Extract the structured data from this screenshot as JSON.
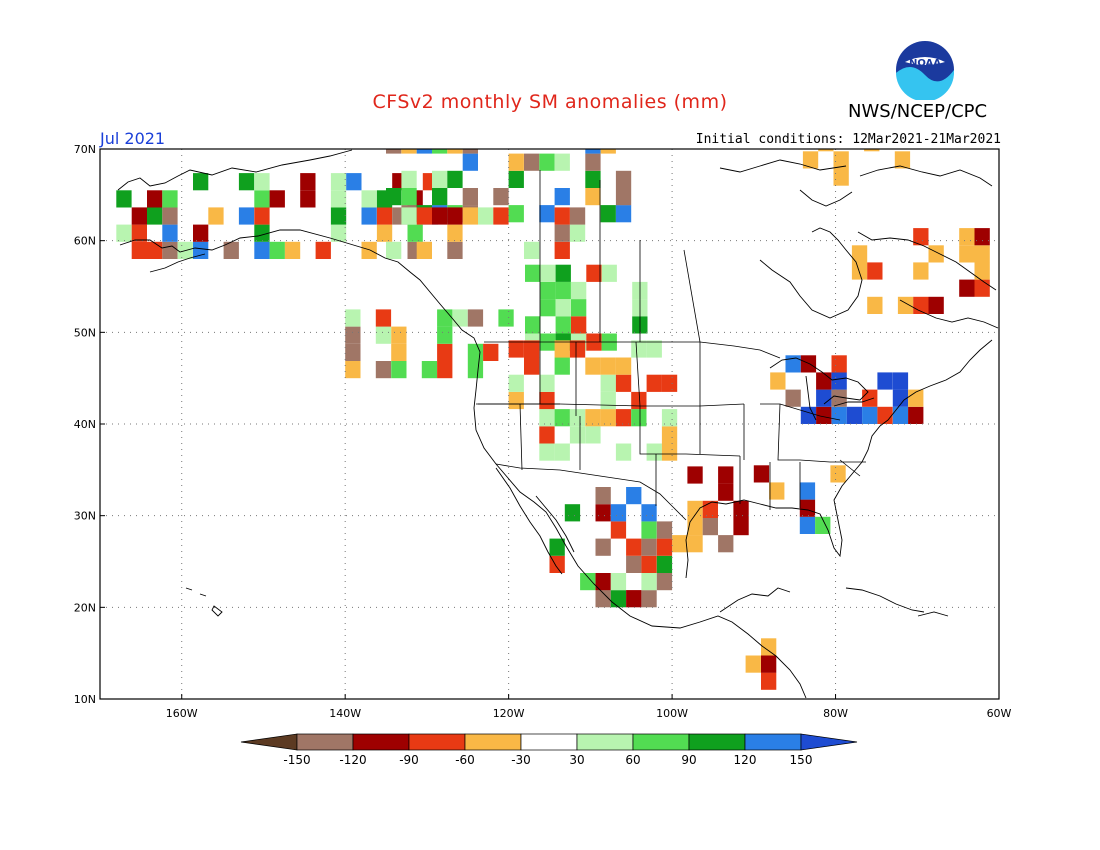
{
  "title": "CFSv2 monthly SM anomalies (mm)",
  "agency": "NWS/NCEP/CPC",
  "logo_text": "NOAA",
  "forecast_month": "Jul 2021",
  "initial_conditions": "Initial conditions: 12Mar2021-21Mar2021",
  "map": {
    "lon_range": [
      -170,
      -60
    ],
    "lat_range": [
      10,
      70
    ],
    "lat_labels": [
      "10N",
      "20N",
      "30N",
      "40N",
      "50N",
      "60N",
      "70N"
    ],
    "lon_labels": [
      "160W",
      "140W",
      "120W",
      "100W",
      "80W",
      "60W"
    ],
    "grid": "dotted"
  },
  "colorbar": {
    "tick_labels": [
      "-150",
      "-120",
      "-90",
      "-60",
      "-30",
      "30",
      "60",
      "90",
      "120",
      "150"
    ],
    "colors": [
      "#5c3a22",
      "#a07666",
      "#9e0000",
      "#e83a14",
      "#f9b846",
      "#ffffff",
      "#b8f4b0",
      "#52dc52",
      "#0fa01e",
      "#2a7fe6",
      "#1e4cd2"
    ]
  }
}
